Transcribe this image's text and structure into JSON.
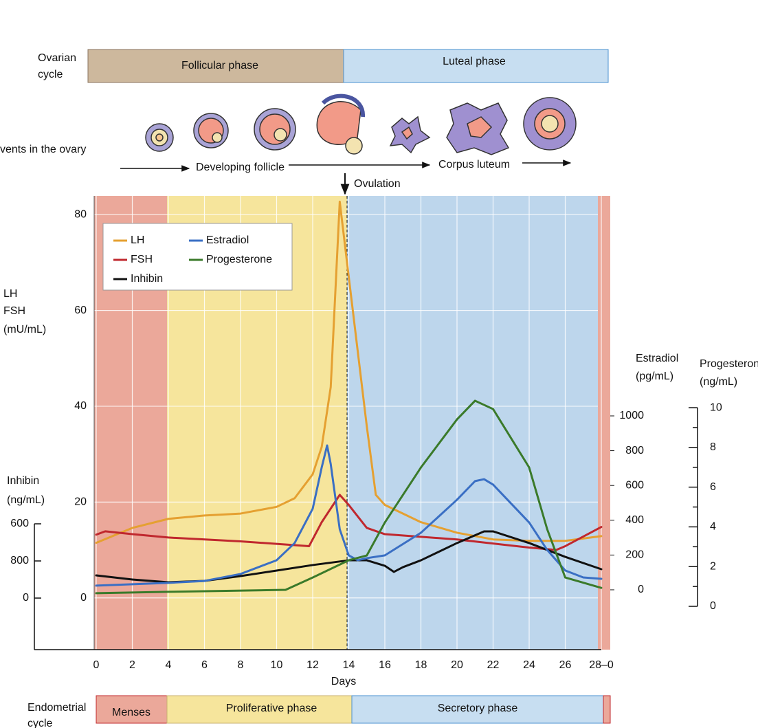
{
  "ovarian_cycle": {
    "label": [
      "Ovarian",
      "cycle"
    ],
    "phases": [
      "Follicular phase",
      "Luteal phase"
    ]
  },
  "ovary_events": {
    "label": "vents in the ovary",
    "stages": [
      "Developing follicle",
      "Corpus luteum"
    ],
    "ovulation": "Ovulation"
  },
  "endometrial_cycle": {
    "label": [
      "Endometrial",
      "cycle"
    ],
    "phases": [
      "Menses",
      "Proliferative phase",
      "Secretory phase"
    ]
  },
  "chart_data": {
    "type": "line",
    "xlabel": "Days",
    "xlim": [
      0,
      28
    ],
    "xticks": [
      0,
      2,
      4,
      6,
      8,
      10,
      12,
      14,
      16,
      18,
      20,
      22,
      24,
      26,
      {
        "value": 28,
        "label": "28–0"
      }
    ],
    "ylabel": [
      "LH",
      "FSH",
      "(mU/mL)"
    ],
    "ylim": [
      -10.8,
      83.9
    ],
    "yticks": [
      0,
      20,
      40,
      60,
      80
    ],
    "y2label": [
      "Estradiol",
      "(pg/mL)"
    ],
    "y2lim": [
      -344,
      2265
    ],
    "y2ticks": [
      0,
      200,
      400,
      600,
      800,
      1000
    ],
    "y3label": [
      "Progesterone",
      "(ng/mL)"
    ],
    "y3lim": [
      -2.18,
      20.66
    ],
    "y3ticks": [
      0,
      2,
      4,
      6,
      8,
      10
    ],
    "y3minorticks": [
      1,
      3,
      5,
      7,
      9
    ],
    "y4label": [
      "Inhibin",
      "(ng/mL)"
    ],
    "y4lim": [
      -556,
      4335
    ],
    "y4ticks": [
      0,
      800,
      600
    ],
    "grid": true,
    "legend": "upper left",
    "series": [
      {
        "name": "LH",
        "color": "#e5a031",
        "axis": "y",
        "x": [
          0,
          2,
          4,
          6,
          8,
          10,
          11,
          12,
          12.5,
          13,
          13.5,
          14,
          15,
          15.5,
          16,
          18,
          20,
          22,
          24,
          26,
          28
        ],
        "values": [
          11.5,
          14.6,
          16.5,
          17.2,
          17.6,
          19,
          20.8,
          25.8,
          31.5,
          44,
          82.7,
          67,
          35.8,
          21.5,
          19.4,
          15.8,
          13.6,
          12.2,
          11.9,
          11.9,
          12.9
        ]
      },
      {
        "name": "FSH",
        "color": "#c0282e",
        "axis": "y",
        "x": [
          0,
          0.5,
          2,
          4,
          8,
          11.8,
          12.5,
          13.5,
          14,
          15,
          16,
          20,
          24,
          25.5,
          26,
          28
        ],
        "values": [
          13.2,
          13.9,
          13.3,
          12.6,
          11.8,
          10.8,
          15.8,
          21.5,
          19.4,
          14.6,
          13.3,
          12.2,
          10.5,
          10,
          10.8,
          14.8
        ]
      },
      {
        "name": "Inhibin",
        "color": "#111111",
        "axis": "y4",
        "x": [
          0,
          2,
          4,
          6,
          8,
          10,
          12,
          14,
          15,
          16,
          16.5,
          17,
          18,
          20,
          21.5,
          22,
          24,
          26,
          28
        ],
        "values": [
          244,
          200,
          170,
          185,
          237,
          296,
          356,
          407,
          407,
          348,
          282,
          333,
          407,
          593,
          719,
          719,
          593,
          444,
          311
        ]
      },
      {
        "name": "Estradiol",
        "color": "#3a6fc4",
        "axis": "y2",
        "x": [
          0,
          4,
          6,
          8,
          10,
          11,
          12,
          12.5,
          12.8,
          13,
          13.5,
          14,
          14.5,
          15,
          16,
          18,
          20,
          21,
          21.5,
          22,
          24,
          25,
          26,
          27,
          28
        ],
        "values": [
          24,
          40,
          51,
          91,
          170,
          269,
          466,
          704,
          830,
          723,
          348,
          198,
          170,
          182,
          198,
          328,
          518,
          625,
          636,
          605,
          387,
          229,
          111,
          71,
          63
        ]
      },
      {
        "name": "Progesterone",
        "color": "#3a7a2a",
        "axis": "y3",
        "x": [
          0,
          4,
          10.5,
          12,
          14,
          15,
          16,
          18,
          20,
          21,
          22,
          24,
          25,
          26,
          28
        ],
        "values": [
          0.66,
          0.73,
          0.83,
          1.45,
          2.32,
          2.56,
          4.22,
          6.99,
          9.41,
          10.35,
          9.93,
          6.99,
          3.88,
          1.45,
          0.93
        ]
      }
    ]
  }
}
